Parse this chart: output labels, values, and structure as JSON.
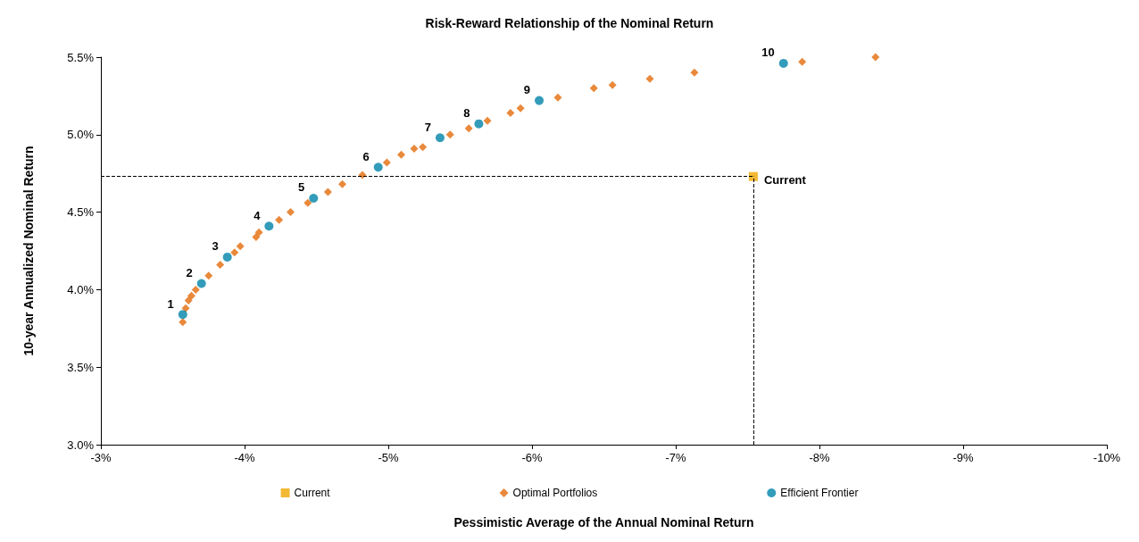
{
  "chart_data": {
    "type": "scatter",
    "title": "Risk-Reward Relationship of the Nominal Return",
    "xlabel": "Pessimistic Average of the Annual Nominal Return",
    "ylabel": "10-year Annualized Nominal Return",
    "xlim": [
      -3,
      -10
    ],
    "xticks": [
      {
        "value": -3,
        "label": "-3%"
      },
      {
        "value": -4,
        "label": "-4%"
      },
      {
        "value": -5,
        "label": "-5%"
      },
      {
        "value": -6,
        "label": "-6%"
      },
      {
        "value": -7,
        "label": "-7%"
      },
      {
        "value": -8,
        "label": "-8%"
      },
      {
        "value": -9,
        "label": "-9%"
      },
      {
        "value": -10,
        "label": "-10%"
      }
    ],
    "ylim": [
      3.0,
      5.5
    ],
    "yticks": [
      {
        "value": 3.0,
        "label": "3.0%"
      },
      {
        "value": 3.5,
        "label": "3.5%"
      },
      {
        "value": 4.0,
        "label": "4.0%"
      },
      {
        "value": 4.5,
        "label": "4.5%"
      },
      {
        "value": 5.0,
        "label": "5.0%"
      },
      {
        "value": 5.5,
        "label": "5.5%"
      }
    ],
    "grid": false,
    "legend": "bottom",
    "ref_lines": [
      {
        "axis": "x",
        "value": -7.54,
        "color": "#000000",
        "line_style": "dashed"
      },
      {
        "axis": "y",
        "value": 4.73,
        "color": "#000000",
        "line_style": "dashed"
      }
    ],
    "series": [
      {
        "name": "Current",
        "color": "#f0a800",
        "marker": "square",
        "x": [
          -7.54
        ],
        "values": [
          4.73
        ]
      },
      {
        "name": "Optimal Portfolios",
        "color": "#e36c0a",
        "marker": "diamond",
        "x": [
          -3.57,
          -3.59,
          -3.61,
          -3.63,
          -3.66,
          -3.75,
          -3.83,
          -3.93,
          -3.97,
          -4.08,
          -4.1,
          -4.24,
          -4.32,
          -4.44,
          -4.58,
          -4.68,
          -4.82,
          -4.99,
          -5.09,
          -5.18,
          -5.24,
          -5.43,
          -5.56,
          -5.69,
          -5.85,
          -5.92,
          -6.18,
          -6.43,
          -6.56,
          -6.82,
          -7.13,
          -7.88,
          -8.39
        ],
        "values": [
          3.79,
          3.88,
          3.93,
          3.96,
          4.0,
          4.09,
          4.16,
          4.24,
          4.28,
          4.34,
          4.37,
          4.45,
          4.5,
          4.56,
          4.63,
          4.68,
          4.74,
          4.82,
          4.87,
          4.91,
          4.92,
          5.0,
          5.04,
          5.09,
          5.14,
          5.17,
          5.24,
          5.3,
          5.32,
          5.36,
          5.4,
          5.47,
          5.5
        ]
      },
      {
        "name": "Efficient Frontier",
        "color": "#0083a9",
        "marker": "circle",
        "x": [
          -3.57,
          -3.7,
          -3.88,
          -4.17,
          -4.48,
          -4.93,
          -5.36,
          -5.63,
          -6.05,
          -7.75
        ],
        "values": [
          3.84,
          4.04,
          4.21,
          4.41,
          4.59,
          4.79,
          4.98,
          5.07,
          5.22,
          5.46
        ]
      }
    ],
    "annotations": [
      {
        "text": "Current",
        "x": -7.54,
        "y": 4.73
      },
      {
        "text": "1",
        "x": -3.57,
        "y": 3.84
      },
      {
        "text": "2",
        "x": -3.7,
        "y": 4.04
      },
      {
        "text": "3",
        "x": -3.88,
        "y": 4.21
      },
      {
        "text": "4",
        "x": -4.17,
        "y": 4.41
      },
      {
        "text": "5",
        "x": -4.48,
        "y": 4.59
      },
      {
        "text": "6",
        "x": -4.93,
        "y": 4.79
      },
      {
        "text": "7",
        "x": -5.36,
        "y": 4.98
      },
      {
        "text": "8",
        "x": -5.63,
        "y": 5.07
      },
      {
        "text": "9",
        "x": -6.05,
        "y": 5.22
      },
      {
        "text": "10",
        "x": -7.75,
        "y": 5.46
      }
    ]
  }
}
